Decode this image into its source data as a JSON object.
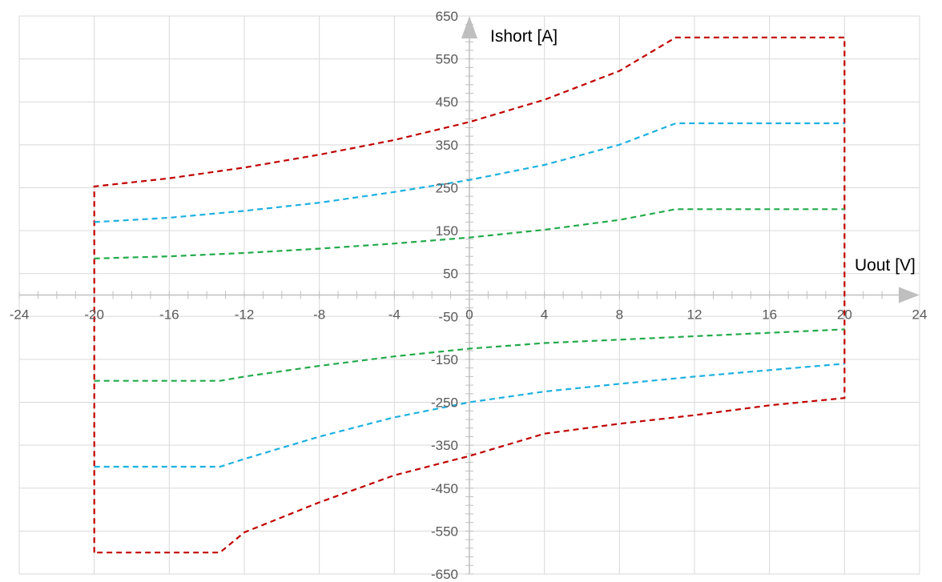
{
  "chart_data": {
    "type": "line",
    "x_axis_title": "Uout [V]",
    "y_axis_title": "Ishort [A]",
    "xlim": [
      -24,
      24
    ],
    "ylim": [
      -650,
      650
    ],
    "x_ticks": [
      -24,
      -20,
      -16,
      -12,
      -8,
      -4,
      0,
      4,
      8,
      12,
      16,
      20,
      24
    ],
    "y_ticks": [
      650,
      550,
      450,
      350,
      250,
      150,
      50,
      -50,
      -150,
      -250,
      -350,
      -450,
      -550,
      -650
    ],
    "x_minor_step": 1,
    "y_minor_step": 20,
    "grid": true,
    "legend": "none",
    "series": [
      {
        "color": "#c00000",
        "points": [
          [
            -20,
            -600
          ],
          [
            -20,
            253
          ],
          [
            -16,
            272
          ],
          [
            -12,
            297
          ],
          [
            -8,
            327
          ],
          [
            -4,
            361
          ],
          [
            0,
            403
          ],
          [
            4,
            455
          ],
          [
            8,
            522
          ],
          [
            11,
            600
          ],
          [
            20,
            600
          ],
          [
            20,
            -240
          ],
          [
            16,
            -257
          ],
          [
            12,
            -280
          ],
          [
            8,
            -300
          ],
          [
            4,
            -323
          ],
          [
            0,
            -375
          ],
          [
            -4,
            -420
          ],
          [
            -8,
            -483
          ],
          [
            -12,
            -553
          ],
          [
            -13.3,
            -600
          ],
          [
            -20,
            -600
          ]
        ]
      },
      {
        "color": "#1cb0e0",
        "points": [
          [
            -20,
            170
          ],
          [
            -16,
            180
          ],
          [
            -12,
            196
          ],
          [
            -8,
            215
          ],
          [
            -4,
            240
          ],
          [
            0,
            268
          ],
          [
            4,
            303
          ],
          [
            8,
            350
          ],
          [
            11,
            400
          ],
          [
            20,
            400
          ]
        ]
      },
      {
        "color": "#1cb0e0",
        "points": [
          [
            -20,
            -400
          ],
          [
            -13.3,
            -400
          ],
          [
            -12,
            -382
          ],
          [
            -8,
            -330
          ],
          [
            -4,
            -285
          ],
          [
            0,
            -250
          ],
          [
            4,
            -225
          ],
          [
            8,
            -207
          ],
          [
            12,
            -190
          ],
          [
            16,
            -175
          ],
          [
            20,
            -160
          ]
        ]
      },
      {
        "color": "#22aa4a",
        "points": [
          [
            -20,
            85
          ],
          [
            -16,
            90
          ],
          [
            -12,
            98
          ],
          [
            -8,
            108
          ],
          [
            -4,
            120
          ],
          [
            0,
            134
          ],
          [
            4,
            152
          ],
          [
            8,
            175
          ],
          [
            11,
            200
          ],
          [
            20,
            200
          ]
        ]
      },
      {
        "color": "#22aa4a",
        "points": [
          [
            -20,
            -200
          ],
          [
            -13.3,
            -200
          ],
          [
            -12,
            -190
          ],
          [
            -8,
            -165
          ],
          [
            -4,
            -143
          ],
          [
            0,
            -125
          ],
          [
            4,
            -112
          ],
          [
            8,
            -104
          ],
          [
            12,
            -96
          ],
          [
            16,
            -88
          ],
          [
            20,
            -80
          ]
        ]
      }
    ]
  }
}
